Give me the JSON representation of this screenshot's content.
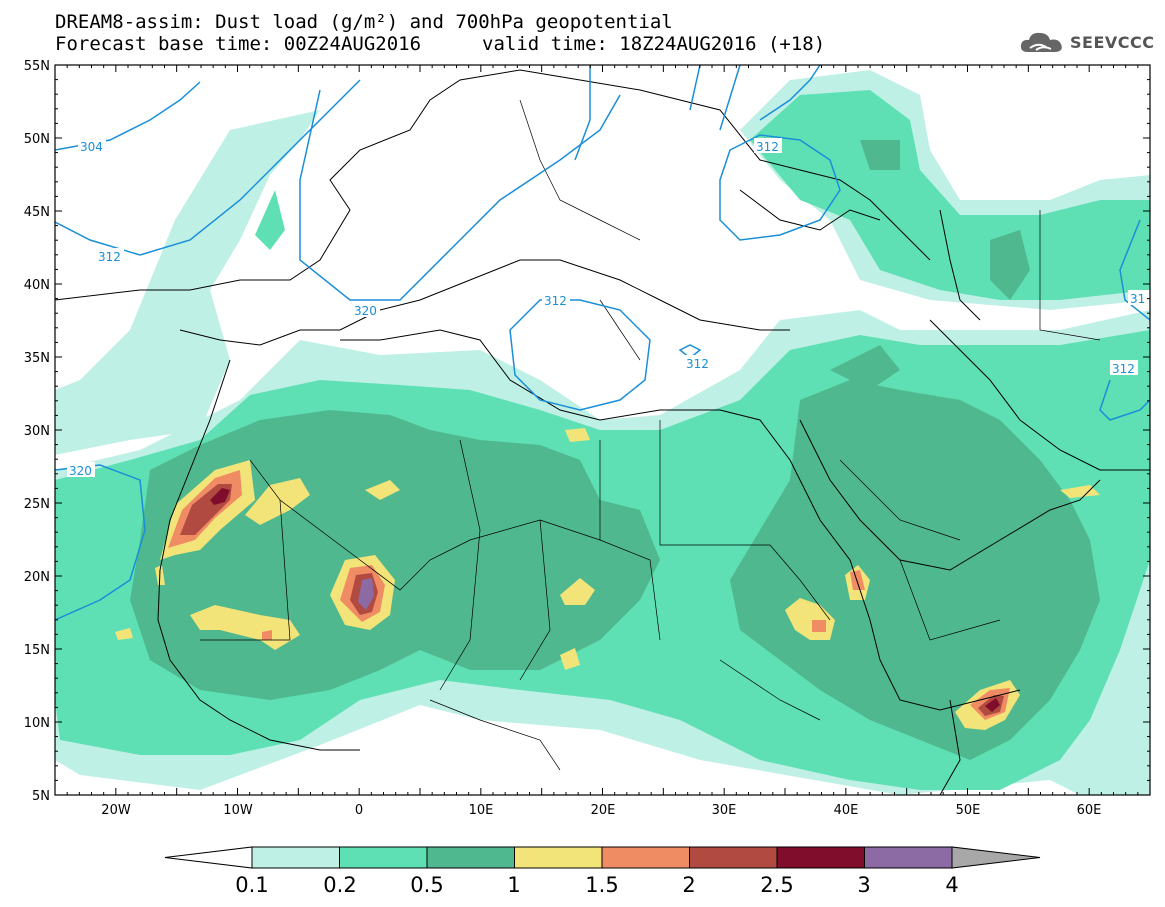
{
  "title": {
    "line1": "DREAM8-assim: Dust load (g/m²) and 700hPa geopotential",
    "line2a": "Forecast base time: 00Z24AUG2016",
    "line2b": "valid time: 18Z24AUG2016 (+18)"
  },
  "logo": {
    "icon": "cloud-logo-icon",
    "text": "SEEVCCC"
  },
  "axes": {
    "lat_labels": [
      "55N",
      "50N",
      "45N",
      "40N",
      "35N",
      "30N",
      "25N",
      "20N",
      "15N",
      "10N",
      "5N"
    ],
    "lon_labels": [
      "20W",
      "10W",
      "0",
      "10E",
      "20E",
      "30E",
      "40E",
      "50E",
      "60E"
    ],
    "lat_range": [
      5,
      55
    ],
    "lon_range": [
      -25,
      65
    ]
  },
  "contours": {
    "labels": [
      "304",
      "312",
      "320",
      "312",
      "312",
      "312",
      "320",
      "312",
      "31"
    ]
  },
  "colorbar": {
    "levels": [
      "0.1",
      "0.2",
      "0.5",
      "1",
      "1.5",
      "2",
      "2.5",
      "3",
      "4"
    ],
    "colors": [
      "#bff0e6",
      "#5ee0b4",
      "#4fb88e",
      "#f3e47a",
      "#ef8c64",
      "#b14a40",
      "#800d2c",
      "#8c6aa4",
      "#a8a8a8"
    ]
  },
  "map_colors": {
    "level1": "#bff0e6",
    "level2": "#5ee0b4",
    "level3": "#4fb88e",
    "level4": "#f3e47a",
    "level5": "#ef8c64",
    "level6": "#b14a40",
    "level7": "#800d2c",
    "level8": "#8c6aa4",
    "contour": "#1a8fd8"
  }
}
